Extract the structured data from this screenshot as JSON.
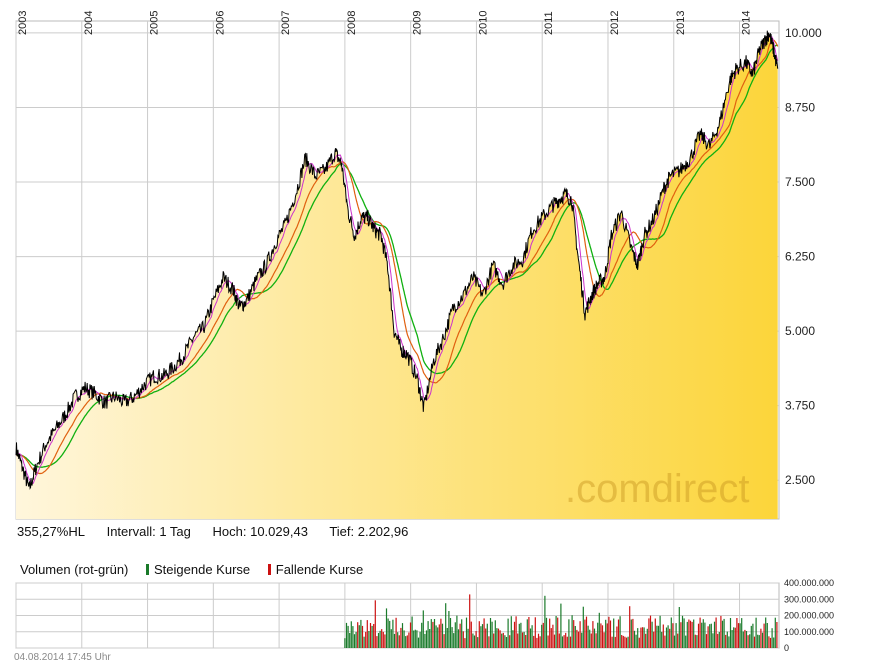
{
  "info": {
    "performance": "355,27%HL",
    "interval": "Intervall: 1 Tag",
    "high": "Hoch:  10.029,43",
    "low": "Tief:  2.202,96"
  },
  "volume_legend": {
    "title": "Volumen (rot-grün)",
    "rising": "Steigende Kurse",
    "falling": "Fallende Kurse"
  },
  "watermark": ".comdirect",
  "timestamp": "04.08.2014 17:45 Uhr",
  "colors": {
    "price_line": "#000000",
    "ma_short": "#cc33cc",
    "ma_mid": "#e06010",
    "ma_long": "#10b010",
    "area_light": "#fff6dc",
    "area_dark": "#fcd53a",
    "volume_up": "#1a7a2a",
    "volume_down": "#cc1111",
    "grid": "#cccccc"
  },
  "chart_data": {
    "type": "line",
    "x_axis_labels": [
      "2003",
      "2004",
      "2005",
      "2006",
      "2007",
      "2008",
      "2009",
      "2010",
      "2011",
      "2012",
      "2013",
      "2014"
    ],
    "y_ticks": [
      "10.000",
      "8.750",
      "7.500",
      "6.250",
      "5.000",
      "3.750",
      "2.500"
    ],
    "y_tick_values": [
      10000,
      8750,
      7500,
      6250,
      5000,
      3750,
      2500
    ],
    "ylim": [
      1850,
      10200
    ],
    "xlim": [
      2003.0,
      2014.6
    ],
    "series": [
      {
        "values": [
          [
            2003.0,
            3050
          ],
          [
            2003.1,
            2700
          ],
          [
            2003.2,
            2350
          ],
          [
            2003.3,
            2700
          ],
          [
            2003.45,
            3100
          ],
          [
            2003.6,
            3350
          ],
          [
            2003.75,
            3600
          ],
          [
            2003.9,
            3900
          ],
          [
            2004.05,
            4050
          ],
          [
            2004.2,
            3950
          ],
          [
            2004.35,
            3800
          ],
          [
            2004.5,
            3900
          ],
          [
            2004.65,
            3800
          ],
          [
            2004.8,
            3900
          ],
          [
            2004.95,
            4100
          ],
          [
            2005.1,
            4250
          ],
          [
            2005.25,
            4250
          ],
          [
            2005.4,
            4400
          ],
          [
            2005.55,
            4600
          ],
          [
            2005.7,
            4900
          ],
          [
            2005.85,
            5050
          ],
          [
            2006.0,
            5500
          ],
          [
            2006.15,
            5900
          ],
          [
            2006.3,
            5700
          ],
          [
            2006.4,
            5400
          ],
          [
            2006.5,
            5500
          ],
          [
            2006.65,
            5850
          ],
          [
            2006.8,
            6100
          ],
          [
            2006.95,
            6500
          ],
          [
            2007.1,
            6800
          ],
          [
            2007.25,
            7300
          ],
          [
            2007.4,
            7900
          ],
          [
            2007.55,
            7600
          ],
          [
            2007.7,
            7700
          ],
          [
            2007.85,
            8000
          ],
          [
            2007.95,
            7800
          ],
          [
            2008.05,
            7000
          ],
          [
            2008.15,
            6600
          ],
          [
            2008.25,
            6900
          ],
          [
            2008.35,
            6900
          ],
          [
            2008.45,
            6700
          ],
          [
            2008.55,
            6600
          ],
          [
            2008.65,
            6100
          ],
          [
            2008.75,
            5000
          ],
          [
            2008.85,
            4700
          ],
          [
            2008.95,
            4600
          ],
          [
            2009.1,
            4200
          ],
          [
            2009.2,
            3700
          ],
          [
            2009.35,
            4500
          ],
          [
            2009.5,
            4900
          ],
          [
            2009.65,
            5400
          ],
          [
            2009.8,
            5600
          ],
          [
            2009.95,
            5900
          ],
          [
            2010.1,
            5600
          ],
          [
            2010.25,
            6100
          ],
          [
            2010.4,
            5800
          ],
          [
            2010.55,
            6100
          ],
          [
            2010.7,
            6200
          ],
          [
            2010.85,
            6700
          ],
          [
            2011.0,
            6900
          ],
          [
            2011.15,
            7100
          ],
          [
            2011.25,
            7200
          ],
          [
            2011.35,
            7300
          ],
          [
            2011.45,
            7200
          ],
          [
            2011.55,
            6200
          ],
          [
            2011.65,
            5300
          ],
          [
            2011.75,
            5600
          ],
          [
            2011.85,
            5800
          ],
          [
            2011.95,
            5900
          ],
          [
            2012.05,
            6600
          ],
          [
            2012.2,
            7000
          ],
          [
            2012.35,
            6400
          ],
          [
            2012.45,
            6100
          ],
          [
            2012.55,
            6600
          ],
          [
            2012.7,
            6900
          ],
          [
            2012.85,
            7400
          ],
          [
            2012.95,
            7600
          ],
          [
            2013.1,
            7700
          ],
          [
            2013.25,
            7900
          ],
          [
            2013.4,
            8300
          ],
          [
            2013.55,
            8100
          ],
          [
            2013.7,
            8500
          ],
          [
            2013.85,
            9200
          ],
          [
            2013.95,
            9400
          ],
          [
            2014.1,
            9500
          ],
          [
            2014.2,
            9300
          ],
          [
            2014.3,
            9700
          ],
          [
            2014.4,
            9900
          ],
          [
            2014.45,
            10000
          ],
          [
            2014.52,
            9700
          ],
          [
            2014.58,
            9400
          ]
        ]
      }
    ],
    "volume": {
      "type": "bar",
      "y_ticks": [
        "400.000.000",
        "300.000.000",
        "200.000.000",
        "100.000.000",
        "0"
      ],
      "y_tick_values": [
        400000000,
        300000000,
        200000000,
        100000000,
        0
      ],
      "ylim": [
        0,
        400000000
      ],
      "data_start": 2008.0
    }
  }
}
